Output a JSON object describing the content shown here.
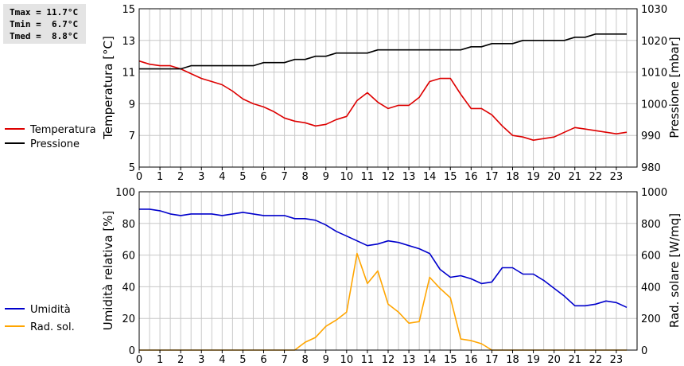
{
  "stats": {
    "tmax": "Tmax = 11.7°C",
    "tmin": "Tmin =  6.7°C",
    "tmed": "Tmed =  8.8°C"
  },
  "colors": {
    "temperature": "#dd0000",
    "pressure": "#000000",
    "humidity": "#0000cc",
    "radiation": "#ffa500",
    "grid": "#c8c8c8"
  },
  "chart_data": [
    {
      "type": "line",
      "x_ticks": [
        "0",
        "1",
        "2",
        "3",
        "4",
        "5",
        "6",
        "7",
        "8",
        "9",
        "10",
        "11",
        "12",
        "13",
        "14",
        "15",
        "16",
        "17",
        "18",
        "19",
        "20",
        "21",
        "22",
        "23"
      ],
      "xlim": [
        0,
        24
      ],
      "ylabel": "Temperatura [°C]",
      "ylim": [
        5,
        15
      ],
      "y_ticks": [
        5,
        7,
        9,
        11,
        13,
        15
      ],
      "y2label": "Pressione [mbar]",
      "y2lim": [
        980,
        1030
      ],
      "y2_ticks": [
        980,
        990,
        1000,
        1010,
        1020,
        1030
      ],
      "grid": true,
      "legend_position": "left",
      "series": [
        {
          "name": "Temperatura",
          "axis": "left",
          "x": [
            0,
            0.5,
            1,
            1.5,
            2,
            2.5,
            3,
            3.5,
            4,
            4.5,
            5,
            5.5,
            6,
            6.5,
            7,
            7.5,
            8,
            8.5,
            9,
            9.5,
            10,
            10.5,
            11,
            11.5,
            12,
            12.5,
            13,
            13.5,
            14,
            14.5,
            15,
            15.5,
            16,
            16.5,
            17,
            17.5,
            18,
            18.5,
            19,
            19.5,
            20,
            20.5,
            21,
            21.5,
            22,
            22.5,
            23,
            23.5
          ],
          "y": [
            11.7,
            11.5,
            11.4,
            11.4,
            11.2,
            10.9,
            10.6,
            10.4,
            10.2,
            9.8,
            9.3,
            9.0,
            8.8,
            8.5,
            8.1,
            7.9,
            7.8,
            7.6,
            7.7,
            8.0,
            8.2,
            9.2,
            9.7,
            9.1,
            8.7,
            8.9,
            8.9,
            9.4,
            10.4,
            10.6,
            10.6,
            9.6,
            8.7,
            8.7,
            8.3,
            7.6,
            7.0,
            6.9,
            6.7,
            6.8,
            6.9,
            7.2,
            7.5,
            7.4,
            7.3,
            7.2,
            7.1,
            7.2
          ]
        },
        {
          "name": "Pressione",
          "axis": "right",
          "x": [
            0,
            2,
            2.5,
            5.5,
            6,
            7,
            7.5,
            8,
            8.5,
            9,
            9.5,
            11,
            11.5,
            15.5,
            16,
            16.5,
            17,
            18,
            18.5,
            20.5,
            21,
            21.5,
            22,
            23.5
          ],
          "y": [
            1011,
            1011,
            1012,
            1012,
            1013,
            1013,
            1014,
            1014,
            1015,
            1015,
            1016,
            1016,
            1017,
            1017,
            1018,
            1018,
            1019,
            1019,
            1020,
            1020,
            1021,
            1021,
            1022,
            1022
          ]
        }
      ]
    },
    {
      "type": "line",
      "x_ticks": [
        "0",
        "1",
        "2",
        "3",
        "4",
        "5",
        "6",
        "7",
        "8",
        "9",
        "10",
        "11",
        "12",
        "13",
        "14",
        "15",
        "16",
        "17",
        "18",
        "19",
        "20",
        "21",
        "22",
        "23"
      ],
      "xlim": [
        0,
        24
      ],
      "ylabel": "Umidità relativa [%]",
      "ylim": [
        0,
        100
      ],
      "y_ticks": [
        0,
        20,
        40,
        60,
        80,
        100
      ],
      "y2label": "Rad. solare [W/mq]",
      "y2lim": [
        0,
        1000
      ],
      "y2_ticks": [
        0,
        200,
        400,
        600,
        800,
        1000
      ],
      "grid": true,
      "legend_position": "left",
      "series": [
        {
          "name": "Umidità",
          "axis": "left",
          "x": [
            0,
            0.5,
            1,
            1.5,
            2,
            2.5,
            3,
            3.5,
            4,
            4.5,
            5,
            5.5,
            6,
            6.5,
            7,
            7.5,
            8,
            8.5,
            9,
            9.5,
            10,
            10.5,
            11,
            11.5,
            12,
            12.5,
            13,
            13.5,
            14,
            14.5,
            15,
            15.5,
            16,
            16.5,
            17,
            17.5,
            18,
            18.5,
            19,
            19.5,
            20,
            20.5,
            21,
            21.5,
            22,
            22.5,
            23,
            23.5
          ],
          "y": [
            89,
            89,
            88,
            86,
            85,
            86,
            86,
            86,
            85,
            86,
            87,
            86,
            85,
            85,
            85,
            83,
            83,
            82,
            79,
            75,
            72,
            69,
            66,
            67,
            69,
            68,
            66,
            64,
            61,
            51,
            46,
            47,
            45,
            42,
            43,
            52,
            52,
            48,
            48,
            44,
            39,
            34,
            28,
            28,
            29,
            31,
            30,
            27
          ]
        },
        {
          "name": "Rad. sol.",
          "axis": "right",
          "x": [
            0,
            0.5,
            1,
            1.5,
            2,
            2.5,
            3,
            3.5,
            4,
            4.5,
            5,
            5.5,
            6,
            6.5,
            7,
            7.5,
            8,
            8.5,
            9,
            9.5,
            10,
            10.5,
            11,
            11.5,
            12,
            12.5,
            13,
            13.5,
            14,
            14.5,
            15,
            15.5,
            16,
            16.5,
            17,
            17.5,
            18,
            18.5,
            19,
            19.5,
            20,
            20.5,
            21,
            21.5,
            22,
            22.5,
            23,
            23.5
          ],
          "y": [
            0,
            0,
            0,
            0,
            0,
            0,
            0,
            0,
            0,
            0,
            0,
            0,
            0,
            0,
            0,
            0,
            50,
            80,
            150,
            190,
            240,
            610,
            420,
            500,
            290,
            240,
            170,
            180,
            460,
            390,
            330,
            70,
            60,
            40,
            0,
            0,
            0,
            0,
            0,
            0,
            0,
            0,
            0,
            0,
            0,
            0,
            0,
            0
          ]
        }
      ]
    }
  ]
}
